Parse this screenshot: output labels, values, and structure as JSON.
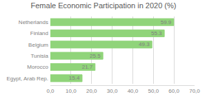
{
  "chart_data": {
    "type": "bar",
    "orientation": "horizontal",
    "title": "Female Economic Participation in 2020 (%)",
    "categories": [
      "Netherlands",
      "Finland",
      "Belgium",
      "Tunisia",
      "Morocco",
      "Egypt, Arab Rep."
    ],
    "values": [
      59.9,
      55.3,
      49.3,
      25.5,
      21.7,
      15.4
    ],
    "color": "#90D47A",
    "xlim": [
      0,
      70
    ],
    "xticks": [
      {
        "value": 0,
        "label": "0,0"
      },
      {
        "value": 10,
        "label": "10,0"
      },
      {
        "value": 20,
        "label": "20,0"
      },
      {
        "value": 30,
        "label": "30,0"
      },
      {
        "value": 40,
        "label": "40,0"
      },
      {
        "value": 50,
        "label": "50,0"
      },
      {
        "value": 60,
        "label": "60,0"
      },
      {
        "value": 70,
        "label": "70,0"
      }
    ],
    "grid": true,
    "data_labels": true
  }
}
